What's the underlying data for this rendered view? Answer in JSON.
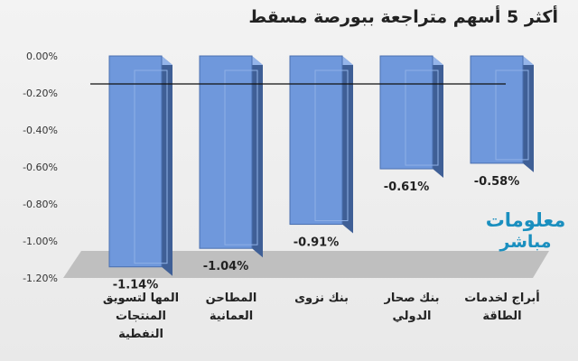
{
  "chart_data": {
    "type": "bar",
    "title": "أكثر 5 أسهم متراجعة ببورصة مسقط",
    "categories": [
      "المها لتسويق المنتجات النفطية",
      "المطاحن العمانية",
      "بنك نزوى",
      "بنك صحار الدولي",
      "أبراج لخدمات الطاقة"
    ],
    "values": [
      -1.14,
      -1.04,
      -0.91,
      -0.61,
      -0.58
    ],
    "value_labels": [
      "-1.14%",
      "-1.04%",
      "-0.91%",
      "-0.61%",
      "-0.58%"
    ],
    "y_ticks": [
      "0.00%",
      "-0.20%",
      "-0.40%",
      "-0.60%",
      "-0.80%",
      "-1.00%",
      "-1.20%"
    ],
    "ylim": [
      -1.2,
      0
    ],
    "grid": false,
    "legend": "none",
    "style": "3d-column",
    "colors": {
      "bar_front": "#6f98dc",
      "bar_side": "#3f5f96",
      "bar_top": "#95b5ea",
      "floor": "#bfbfbf"
    }
  },
  "watermark": {
    "line1": "معلومات",
    "line2": "مباشر"
  }
}
